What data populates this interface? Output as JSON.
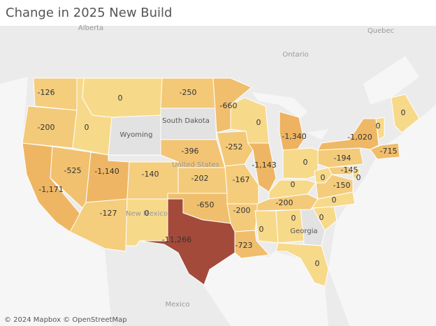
{
  "chart_data": {
    "type": "choropleth",
    "title": "Change in 2025 New Build",
    "values": [
      -126,
      -200,
      -1171,
      -525,
      0,
      0,
      -1140,
      -140,
      -127,
      0,
      -250,
      -396,
      -202,
      -650,
      -11266,
      -660,
      -252,
      -167,
      -200,
      -723,
      0,
      -1143,
      -1340,
      0,
      0,
      -200,
      0,
      -150,
      0,
      0,
      0,
      0,
      0,
      -194,
      -145,
      0,
      -1020,
      0,
      0,
      -715
    ],
    "value_labels": [
      "-126",
      "-200",
      "-1,171",
      "-525",
      "0",
      "0",
      "-1,140",
      "-140",
      "-127",
      "0",
      "-250",
      "-396",
      "-202",
      "-650",
      "-11,266",
      "-660",
      "-252",
      "-167",
      "-200",
      "-723",
      "0",
      "-1,143",
      "-1,340",
      "0",
      "0",
      "-200",
      "0",
      "-150",
      "0",
      "0",
      "0",
      "0",
      "0",
      "-194",
      "-145",
      "0",
      "-1,020",
      "0",
      "0",
      "-715"
    ],
    "colors": [
      "#f7d98a",
      "#e9a24e",
      "#a34a3a"
    ],
    "no_data_color": "#e2e2e2",
    "no_data_regions": [
      "Wyoming",
      "South Dakota",
      "Georgia"
    ],
    "place_labels": [
      "Alberta",
      "Quebec",
      "Ontario",
      "Mexico",
      "United States",
      "New Mexico"
    ],
    "attribution": "© 2024 Mapbox © OpenStreetMap"
  }
}
